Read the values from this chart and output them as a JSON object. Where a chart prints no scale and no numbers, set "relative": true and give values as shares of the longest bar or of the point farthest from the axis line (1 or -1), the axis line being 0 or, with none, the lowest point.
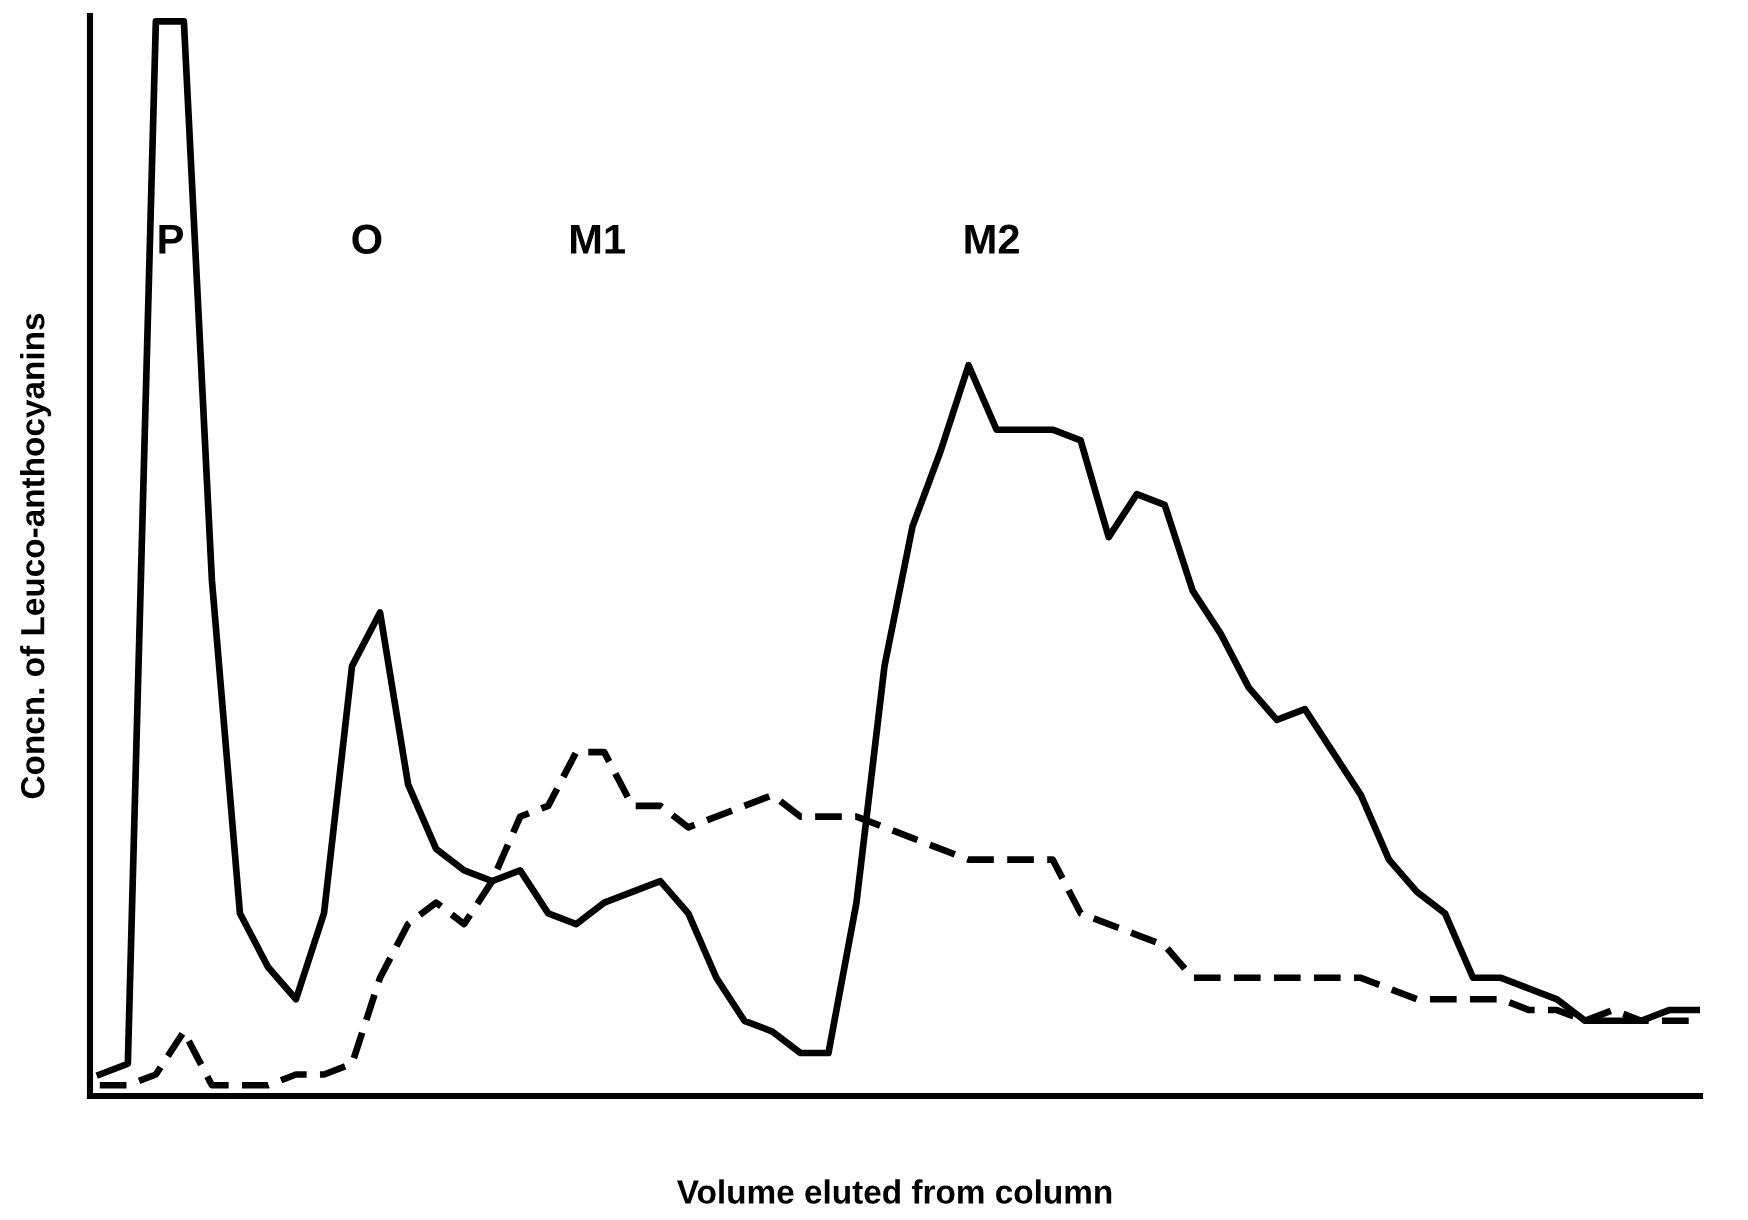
{
  "chart_data": {
    "type": "line",
    "relative": true,
    "xlabel": "Volume eluted from column",
    "ylabel": "Concn. of Leuco-anthocyanins",
    "annotations": [
      "P",
      "O",
      "M1",
      "M2"
    ],
    "categories": [
      null,
      null,
      null,
      null,
      null,
      null,
      null,
      null,
      null,
      null,
      null,
      null,
      null,
      null,
      null,
      null,
      null,
      null,
      null,
      null,
      null,
      null,
      null,
      null,
      null,
      null,
      null,
      null,
      null,
      null,
      null,
      null,
      null,
      null,
      null,
      null,
      null,
      null,
      null,
      null,
      null,
      null,
      null,
      null,
      null,
      null,
      null,
      null,
      null,
      null,
      null,
      null,
      null,
      null,
      null,
      null,
      null,
      null
    ],
    "legend": false,
    "marker": "none",
    "series": [
      {
        "color": "#000000",
        "line_style": "solid",
        "values": [
          0.02,
          0.03,
          1,
          1,
          0.48,
          0.17,
          0.12,
          0.09,
          0.17,
          0.4,
          0.45,
          0.29,
          0.23,
          0.21,
          0.2,
          0.21,
          0.17,
          0.16,
          0.18,
          0.19,
          0.2,
          0.17,
          0.11,
          0.07,
          0.06,
          0.04,
          0.04,
          0.18,
          0.4,
          0.53,
          0.6,
          0.68,
          0.62,
          0.62,
          0.62,
          0.61,
          0.52,
          0.56,
          0.55,
          0.47,
          0.43,
          0.38,
          0.35,
          0.36,
          0.32,
          0.28,
          0.22,
          0.19,
          0.17,
          0.11,
          0.11,
          0.1,
          0.09,
          0.07,
          0.07,
          0.07,
          0.08,
          0.08
        ]
      },
      {
        "color": "#000000",
        "line_style": "dashed",
        "values": [
          0.01,
          0.01,
          0.02,
          0.06,
          0.01,
          0.01,
          0.01,
          0.02,
          0.02,
          0.03,
          0.11,
          0.16,
          0.18,
          0.16,
          0.2,
          0.26,
          0.27,
          0.32,
          0.32,
          0.27,
          0.27,
          0.25,
          0.26,
          0.27,
          0.28,
          0.26,
          0.26,
          0.26,
          0.25,
          0.24,
          0.23,
          0.22,
          0.22,
          0.22,
          0.22,
          0.17,
          0.16,
          0.15,
          0.14,
          0.11,
          0.11,
          0.11,
          0.11,
          0.11,
          0.11,
          0.11,
          0.1,
          0.09,
          0.09,
          0.09,
          0.09,
          0.08,
          0.08,
          0.07,
          0.08,
          0.07,
          0.07,
          0.07
        ]
      }
    ]
  }
}
